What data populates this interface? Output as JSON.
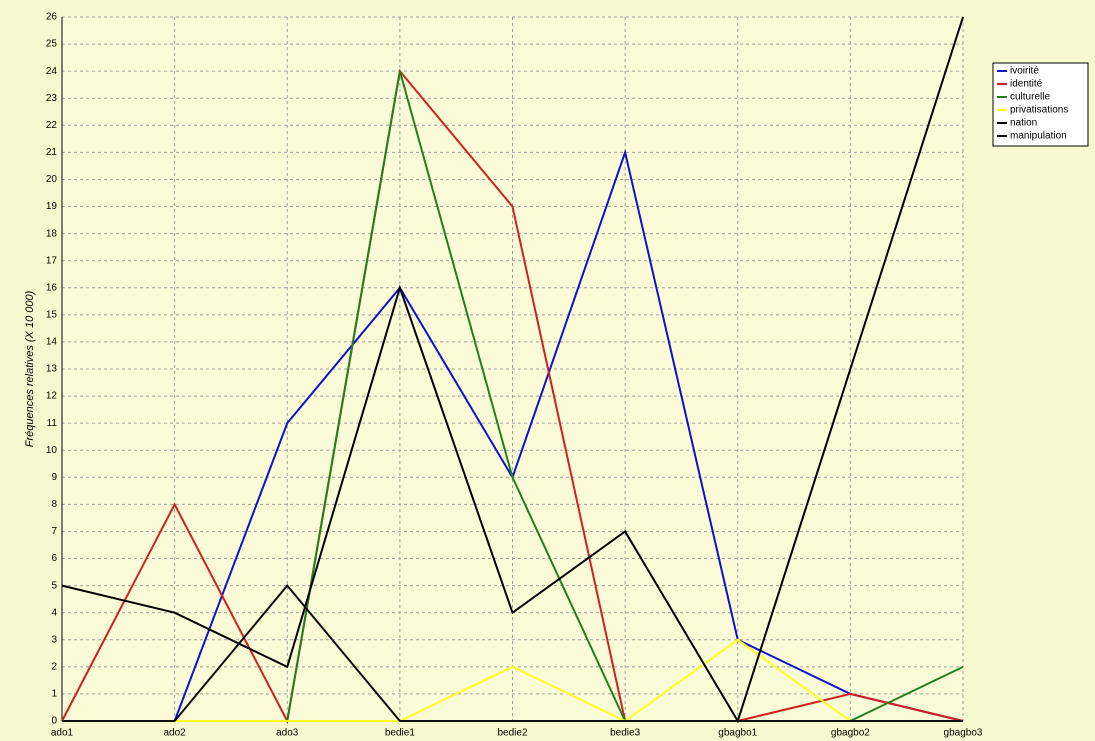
{
  "chart_data": {
    "type": "line",
    "y_label": "Fréquences relatives (X 10 000)",
    "categories": [
      "ado1",
      "ado2",
      "ado3",
      "bedie1",
      "bedie2",
      "bedie3",
      "gbagbo1",
      "gbagbo2",
      "gbagbo3"
    ],
    "series": [
      {
        "name": "ivoirité",
        "color": "#1010d0",
        "values": [
          0,
          0,
          11,
          16,
          9,
          21,
          3,
          1,
          0
        ]
      },
      {
        "name": "identité",
        "color": "#d02020",
        "values": [
          0,
          8,
          0,
          24,
          19,
          0,
          0,
          1,
          0
        ]
      },
      {
        "name": "culturelle",
        "color": "#208020",
        "values": [
          0,
          0,
          0,
          24,
          9,
          0,
          0,
          0,
          2
        ]
      },
      {
        "name": "privatisations",
        "color": "#ffff20",
        "values": [
          0,
          0,
          0,
          0,
          2,
          0,
          3,
          0,
          0
        ]
      },
      {
        "name": "nation",
        "color": "#000000",
        "values": [
          5,
          4,
          2,
          16,
          4,
          7,
          0,
          13,
          26
        ]
      },
      {
        "name": "manipulation",
        "color": "#101010",
        "values": [
          0,
          0,
          5,
          0,
          0,
          0,
          0,
          0,
          0
        ]
      }
    ],
    "ylim": [
      0,
      26
    ],
    "yticks": [
      0,
      1,
      2,
      3,
      4,
      5,
      6,
      7,
      8,
      9,
      10,
      11,
      12,
      13,
      14,
      15,
      16,
      17,
      18,
      19,
      20,
      21,
      22,
      23,
      24,
      25,
      26
    ],
    "grid": true,
    "legend": "top-right"
  }
}
